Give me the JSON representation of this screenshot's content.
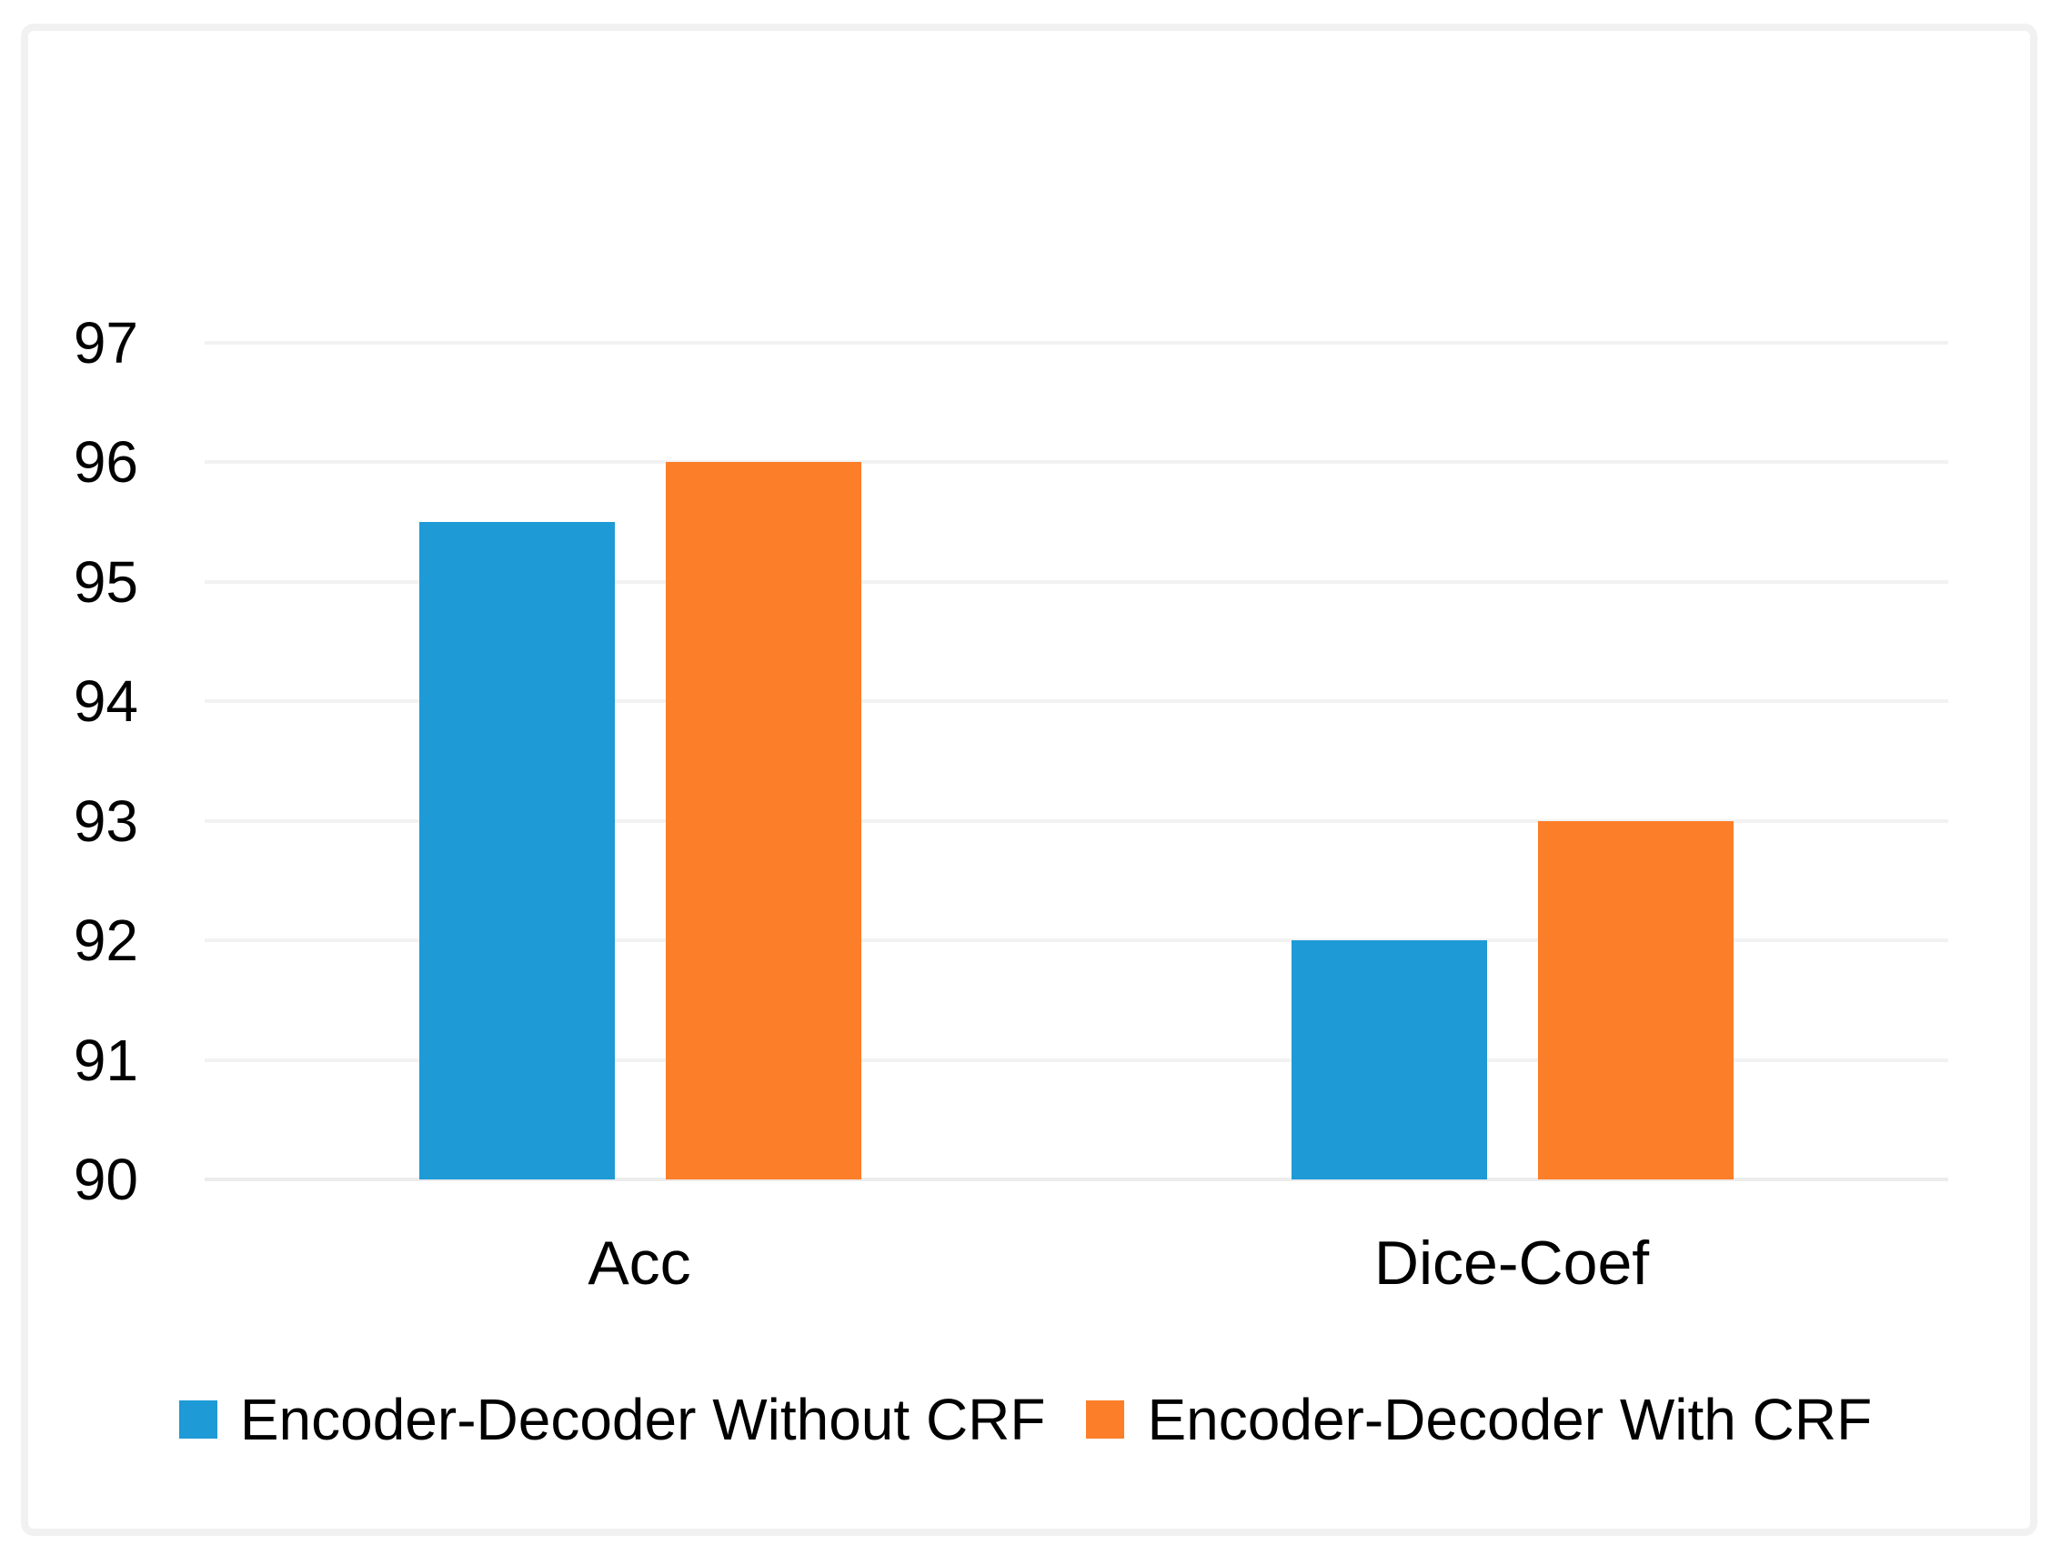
{
  "chart_data": {
    "type": "bar",
    "title": "",
    "xlabel": "",
    "ylabel": "",
    "categories": [
      "Acc",
      "Dice-Coef"
    ],
    "series": [
      {
        "name": "Encoder-Decoder Without CRF",
        "color": "#1E9AD6",
        "values": [
          95.5,
          92
        ]
      },
      {
        "name": "Encoder-Decoder With CRF",
        "color": "#FD7E28",
        "values": [
          96,
          93
        ]
      }
    ],
    "ylim": [
      90,
      97
    ],
    "yticks": [
      90,
      91,
      92,
      93,
      94,
      95,
      96,
      97
    ],
    "grid": true,
    "legend_position": "bottom",
    "colors": {
      "gridline": "#f2f2f2",
      "baseline": "#ececec",
      "frame_border": "#f1f1f1",
      "background": "#ffffff",
      "text": "#000000"
    }
  }
}
